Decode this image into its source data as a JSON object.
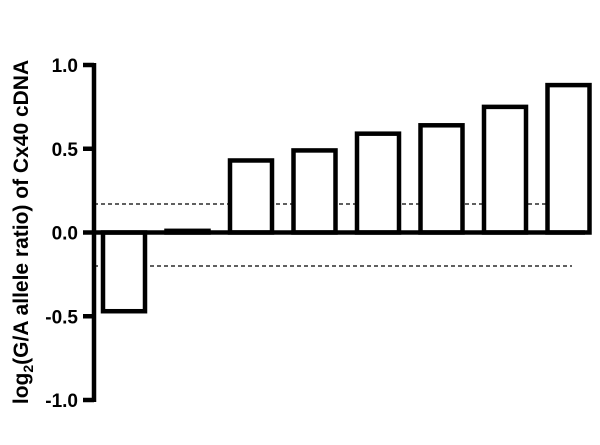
{
  "chart_data": {
    "type": "bar",
    "title": "",
    "xlabel": "",
    "ylabel": {
      "prefix": "log",
      "subscript": "2",
      "suffix": "(G/A allele ratio) of Cx40 cDNA"
    },
    "ylim": [
      -1.0,
      1.0
    ],
    "yticks": [
      1.0,
      0.5,
      0.0,
      -0.5,
      -1.0
    ],
    "ytick_labels": [
      "1.0",
      "0.5",
      "0.0",
      "-0.5",
      "-1.0"
    ],
    "values": [
      -0.47,
      0.01,
      0.43,
      0.49,
      0.59,
      0.64,
      0.75,
      0.88
    ],
    "reference_lines": [
      0.17,
      -0.2
    ],
    "grid": false,
    "colors": {
      "bar_fill": "#ffffff",
      "bar_stroke": "#000000",
      "axis": "#000000"
    }
  }
}
